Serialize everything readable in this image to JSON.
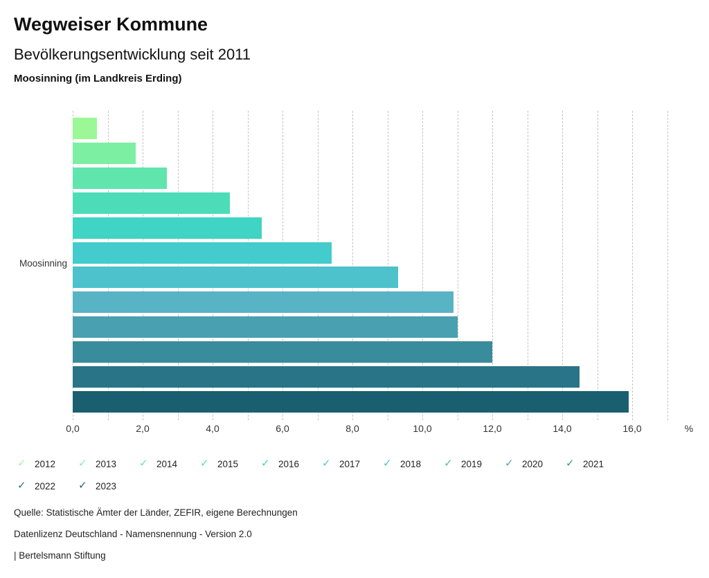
{
  "header": {
    "title": "Wegweiser Kommune",
    "subtitle": "Bevölkerungsentwicklung seit 2011",
    "region": "Moosinning (im Landkreis Erding)"
  },
  "chart_data": {
    "type": "bar",
    "orientation": "horizontal",
    "title": "Bevölkerungsentwicklung seit 2011",
    "category": "Moosinning",
    "unit": "%",
    "xlim": [
      0,
      17
    ],
    "grid": "vertical dashed every 1.0",
    "legend_position": "bottom",
    "series": [
      {
        "name": "2012",
        "value": 0.7,
        "color": "#9cf897"
      },
      {
        "name": "2013",
        "value": 1.8,
        "color": "#7defa3"
      },
      {
        "name": "2014",
        "value": 2.7,
        "color": "#60e6ad"
      },
      {
        "name": "2015",
        "value": 4.5,
        "color": "#4cddb8"
      },
      {
        "name": "2016",
        "value": 5.4,
        "color": "#3fd4c3"
      },
      {
        "name": "2017",
        "value": 7.4,
        "color": "#43cbce"
      },
      {
        "name": "2018",
        "value": 9.3,
        "color": "#4dc2cc"
      },
      {
        "name": "2019",
        "value": 10.9,
        "color": "#58b3c5"
      },
      {
        "name": "2020",
        "value": 11.0,
        "color": "#49a0b1"
      },
      {
        "name": "2021",
        "value": 12.0,
        "color": "#398c9c"
      },
      {
        "name": "2022",
        "value": 14.5,
        "color": "#2a7487"
      },
      {
        "name": "2023",
        "value": 15.9,
        "color": "#1a5f70"
      }
    ],
    "x_ticks": [
      {
        "label": "0,0",
        "value": 0
      },
      {
        "label": "2,0",
        "value": 2
      },
      {
        "label": "4,0",
        "value": 4
      },
      {
        "label": "6,0",
        "value": 6
      },
      {
        "label": "8,0",
        "value": 8
      },
      {
        "label": "10,0",
        "value": 10
      },
      {
        "label": "12,0",
        "value": 12
      },
      {
        "label": "14,0",
        "value": 14
      },
      {
        "label": "16,0",
        "value": 16
      }
    ]
  },
  "legend": {
    "check_icon": "✓",
    "rows": [
      [
        "2012",
        "2013",
        "2014",
        "2015",
        "2016",
        "2017",
        "2018",
        "2019",
        "2020",
        "2021"
      ],
      [
        "2022",
        "2023"
      ]
    ]
  },
  "footer": {
    "source": "Quelle: Statistische Ämter der Länder, ZEFIR, eigene Berechnungen",
    "license": "Datenlizenz Deutschland - Namensnennung - Version 2.0",
    "attribution": "| Bertelsmann Stiftung"
  }
}
